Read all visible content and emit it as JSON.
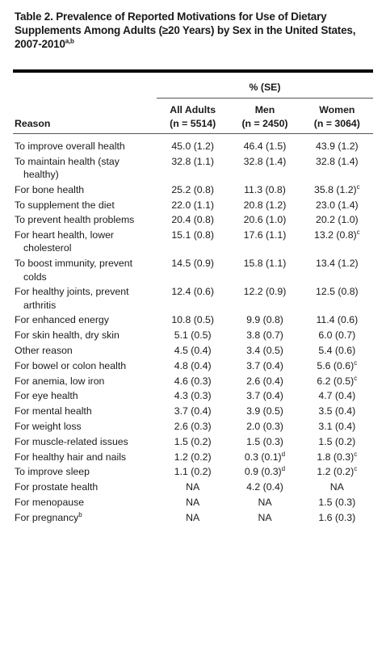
{
  "header": {
    "title": "Table 2. Prevalence of Reported Motivations for Use of Dietary Supplements Among Adults (≥20 Years) by Sex in the United States, 2007-2010",
    "title_sup": "a,b"
  },
  "table": {
    "group_header": "% (SE)",
    "reason_header": "Reason",
    "columns": [
      {
        "name": "All Adults",
        "n": "(n = 5514)"
      },
      {
        "name": "Men",
        "n": "(n = 2450)"
      },
      {
        "name": "Women",
        "n": "(n = 3064)"
      }
    ],
    "rows": [
      [
        "To improve overall health",
        "45.0 (1.2)",
        "46.4 (1.5)",
        "43.9 (1.2)"
      ],
      [
        "To maintain health (stay healthy)",
        "32.8 (1.1)",
        "32.8 (1.4)",
        "32.8 (1.4)"
      ],
      [
        "For bone health",
        "25.2 (0.8)",
        "11.3 (0.8)",
        {
          "text": "35.8 (1.2)",
          "sup": "c"
        }
      ],
      [
        "To supplement the diet",
        "22.0 (1.1)",
        "20.8 (1.2)",
        "23.0 (1.4)"
      ],
      [
        "To prevent health problems",
        "20.4 (0.8)",
        "20.6 (1.0)",
        "20.2 (1.0)"
      ],
      [
        "For heart health, lower cholesterol",
        "15.1 (0.8)",
        "17.6 (1.1)",
        {
          "text": "13.2 (0.8)",
          "sup": "c"
        }
      ],
      [
        "To boost immunity, prevent colds",
        "14.5 (0.9)",
        "15.8 (1.1)",
        "13.4 (1.2)"
      ],
      [
        "For healthy joints, prevent arthritis",
        "12.4 (0.6)",
        "12.2 (0.9)",
        "12.5 (0.8)"
      ],
      [
        "For enhanced energy",
        "10.8 (0.5)",
        "9.9 (0.8)",
        "11.4 (0.6)"
      ],
      [
        "For skin health, dry skin",
        "5.1 (0.5)",
        "3.8 (0.7)",
        "6.0 (0.7)"
      ],
      [
        "Other reason",
        "4.5 (0.4)",
        "3.4 (0.5)",
        "5.4 (0.6)"
      ],
      [
        "For bowel or colon health",
        "4.8 (0.4)",
        "3.7 (0.4)",
        {
          "text": "5.6 (0.6)",
          "sup": "c"
        }
      ],
      [
        "For anemia, low iron",
        "4.6 (0.3)",
        "2.6 (0.4)",
        {
          "text": "6.2 (0.5)",
          "sup": "c"
        }
      ],
      [
        "For eye health",
        "4.3 (0.3)",
        "3.7 (0.4)",
        "4.7 (0.4)"
      ],
      [
        "For mental health",
        "3.7 (0.4)",
        "3.9 (0.5)",
        "3.5 (0.4)"
      ],
      [
        "For weight loss",
        "2.6 (0.3)",
        "2.0 (0.3)",
        "3.1 (0.4)"
      ],
      [
        "For muscle-related issues",
        "1.5 (0.2)",
        "1.5 (0.3)",
        "1.5 (0.2)"
      ],
      [
        "For healthy hair and nails",
        "1.2 (0.2)",
        {
          "text": "0.3 (0.1)",
          "sup": "d"
        },
        {
          "text": "1.8 (0.3)",
          "sup": "c"
        }
      ],
      [
        "To improve sleep",
        "1.1 (0.2)",
        {
          "text": "0.9 (0.3)",
          "sup": "d"
        },
        {
          "text": "1.2 (0.2)",
          "sup": "c"
        }
      ],
      [
        "For prostate health",
        "NA",
        "4.2 (0.4)",
        "NA"
      ],
      [
        "For menopause",
        "NA",
        "NA",
        "1.5 (0.3)"
      ],
      [
        {
          "text": "For pregnancy",
          "sup": "b"
        },
        "NA",
        "NA",
        "1.6 (0.3)"
      ]
    ]
  }
}
